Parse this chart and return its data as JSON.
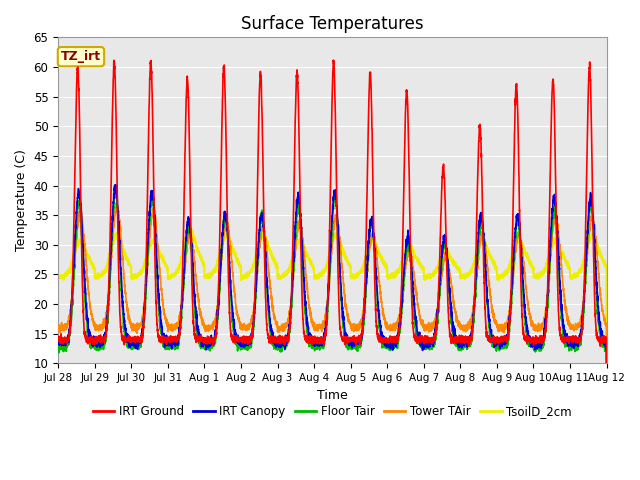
{
  "title": "Surface Temperatures",
  "xlabel": "Time",
  "ylabel": "Temperature (C)",
  "ylim": [
    10,
    65
  ],
  "background_color": "#ffffff",
  "plot_bg_color": "#e8e8e8",
  "grid_color": "#ffffff",
  "annotation_text": "TZ_irt",
  "annotation_bg": "#ffffcc",
  "annotation_border": "#ccaa00",
  "annotation_text_color": "#8b0000",
  "series": {
    "IRT Ground": {
      "color": "#ff0000",
      "lw": 1.2
    },
    "IRT Canopy": {
      "color": "#0000dd",
      "lw": 1.2
    },
    "Floor Tair": {
      "color": "#00bb00",
      "lw": 1.2
    },
    "Tower TAir": {
      "color": "#ff8800",
      "lw": 1.2
    },
    "TsoilD_2cm": {
      "color": "#eeee00",
      "lw": 1.5
    }
  },
  "tick_labels": [
    "Jul 28",
    "Jul 29",
    "Jul 30",
    "Jul 31",
    "Aug 1",
    "Aug 2",
    "Aug 3",
    "Aug 4",
    "Aug 5",
    "Aug 6",
    "Aug 7",
    "Aug 8",
    "Aug 9",
    "Aug 10",
    "Aug 11",
    "Aug 12"
  ],
  "yticks": [
    10,
    15,
    20,
    25,
    30,
    35,
    40,
    45,
    50,
    55,
    60,
    65
  ],
  "n_days": 15,
  "seed": 12345
}
